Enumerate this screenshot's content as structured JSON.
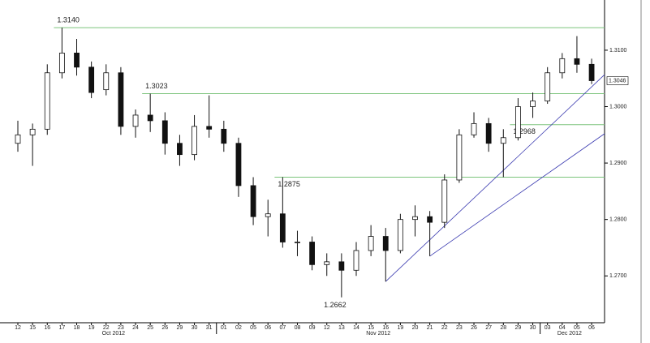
{
  "chart_data": {
    "type": "candlestick",
    "categories": [
      "12",
      "15",
      "16",
      "17",
      "18",
      "19",
      "22",
      "23",
      "24",
      "25",
      "26",
      "29",
      "30",
      "31",
      "01",
      "02",
      "05",
      "06",
      "07",
      "08",
      "09",
      "12",
      "13",
      "14",
      "15",
      "16",
      "19",
      "20",
      "21",
      "22",
      "23",
      "26",
      "27",
      "28",
      "29",
      "30",
      "03",
      "04",
      "05",
      "06"
    ],
    "months": [
      "Oct 2012",
      "Nov 2012",
      "Dec 2012"
    ],
    "open": [
      1.2935,
      1.295,
      1.296,
      1.306,
      1.3095,
      1.307,
      1.303,
      1.306,
      1.2965,
      1.2985,
      1.2975,
      1.2935,
      1.2915,
      1.2965,
      1.296,
      1.2935,
      1.286,
      1.2805,
      1.281,
      1.276,
      1.276,
      1.272,
      1.2725,
      1.271,
      1.2745,
      1.277,
      1.2745,
      1.28,
      1.2805,
      1.2795,
      1.287,
      1.295,
      1.297,
      1.2935,
      1.2945,
      1.3,
      1.301,
      1.306,
      1.3085,
      1.3075
    ],
    "high": [
      1.2975,
      1.297,
      1.3075,
      1.314,
      1.312,
      1.308,
      1.3075,
      1.307,
      1.2995,
      1.3023,
      1.299,
      1.295,
      1.2985,
      1.302,
      1.2975,
      1.2945,
      1.2875,
      1.2835,
      1.2875,
      1.278,
      1.277,
      1.274,
      1.274,
      1.276,
      1.279,
      1.2785,
      1.281,
      1.2825,
      1.2815,
      1.288,
      1.296,
      1.299,
      1.298,
      1.296,
      1.3015,
      1.3025,
      1.307,
      1.3095,
      1.3125,
      1.3085
    ],
    "low": [
      1.292,
      1.2895,
      1.295,
      1.305,
      1.3055,
      1.3015,
      1.302,
      1.295,
      1.2945,
      1.2955,
      1.2915,
      1.2895,
      1.2905,
      1.2945,
      1.292,
      1.284,
      1.279,
      1.277,
      1.275,
      1.2735,
      1.271,
      1.27,
      1.2662,
      1.27,
      1.2735,
      1.269,
      1.274,
      1.277,
      1.2735,
      1.2785,
      1.2865,
      1.2945,
      1.292,
      1.2875,
      1.294,
      1.298,
      1.3005,
      1.305,
      1.306,
      1.304
    ],
    "close": [
      1.295,
      1.296,
      1.306,
      1.3095,
      1.307,
      1.3025,
      1.306,
      1.2965,
      1.2985,
      1.2975,
      1.2935,
      1.2915,
      1.2965,
      1.296,
      1.2935,
      1.286,
      1.2805,
      1.281,
      1.276,
      1.276,
      1.272,
      1.2725,
      1.271,
      1.2745,
      1.277,
      1.2745,
      1.28,
      1.2805,
      1.2795,
      1.287,
      1.295,
      1.297,
      1.2935,
      1.2945,
      1.3,
      1.301,
      1.306,
      1.3085,
      1.3075,
      1.3046
    ],
    "ylim": [
      1.2617,
      1.3189
    ],
    "yticks": [
      {
        "value": 1.27,
        "label": "1.2700"
      },
      {
        "value": 1.28,
        "label": "1.2800"
      },
      {
        "value": 1.29,
        "label": "1.2900"
      },
      {
        "value": 1.3,
        "label": "1.3000"
      },
      {
        "value": 1.31,
        "label": "1.3100"
      }
    ],
    "levels": [
      {
        "value": 1.314,
        "label": "1.3140",
        "start": 3,
        "position": "above"
      },
      {
        "value": 1.3023,
        "label": "1.3023",
        "start": 9,
        "position": "above"
      },
      {
        "value": 1.2968,
        "label": "1.2968",
        "start": 34,
        "position": "below"
      },
      {
        "value": 1.2875,
        "label": "1.2875",
        "start": 18,
        "position": "below"
      }
    ],
    "annotations": [
      {
        "value": 1.2662,
        "label": "1.2662",
        "at": 22
      }
    ],
    "last_price": {
      "value": 1.3046,
      "label": "1.3046"
    },
    "trendlines": [
      {
        "x": [
          25,
          39
        ],
        "values": [
          1.269,
          1.3035
        ],
        "color": "#3a3ab0"
      },
      {
        "x": [
          28,
          39
        ],
        "values": [
          1.2735,
          1.2936
        ],
        "color": "#3a3ab0"
      }
    ],
    "level_color": "#7cc47c",
    "candle_color": "#111111"
  }
}
